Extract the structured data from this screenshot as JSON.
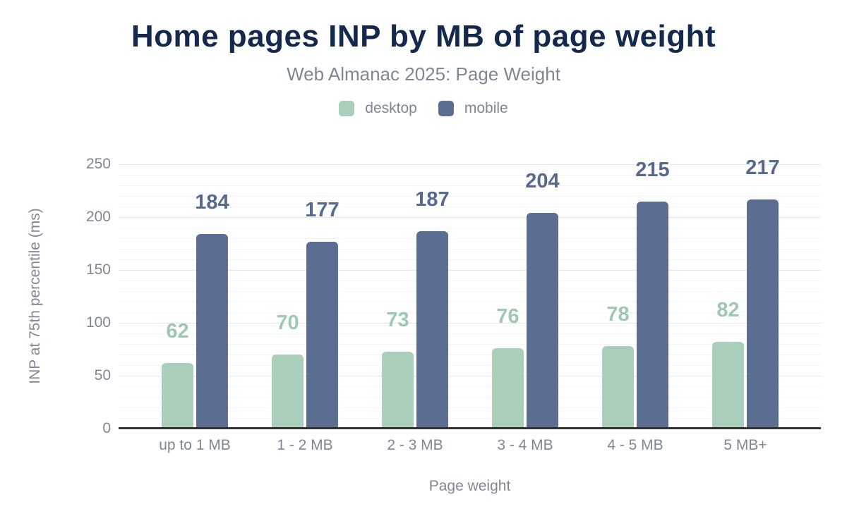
{
  "colors": {
    "title": "#14294b",
    "text_gray": "#7e8795",
    "axis_line": "#333333",
    "grid_major": "#e3e5e9",
    "grid_minor": "#f3f4f6",
    "desktop": "#a9ceba",
    "mobile": "#5b6d90"
  },
  "chart_data": {
    "type": "bar",
    "title": "Home pages INP by MB of page weight",
    "subtitle": "Web Almanac 2025: Page Weight",
    "categories": [
      "up to 1 MB",
      "1 - 2 MB",
      "2 - 3 MB",
      "3 - 4 MB",
      "4 - 5 MB",
      "5 MB+"
    ],
    "series": [
      {
        "name": "desktop",
        "color": "#a9ceba",
        "label_color": "#9fc8b1",
        "values": [
          62,
          70,
          73,
          76,
          78,
          82
        ]
      },
      {
        "name": "mobile",
        "color": "#5b6d90",
        "label_color": "#57698d",
        "values": [
          184,
          177,
          187,
          204,
          215,
          217
        ]
      }
    ],
    "xlabel": "Page weight",
    "ylabel": "INP at 75th percentile (ms)",
    "ylim": [
      0,
      250
    ],
    "yticks": [
      0,
      50,
      100,
      150,
      200,
      250
    ],
    "ytick_step": 50,
    "minor_grid_step": 10,
    "grid": true,
    "legend_position": "top",
    "data_labels": true
  }
}
